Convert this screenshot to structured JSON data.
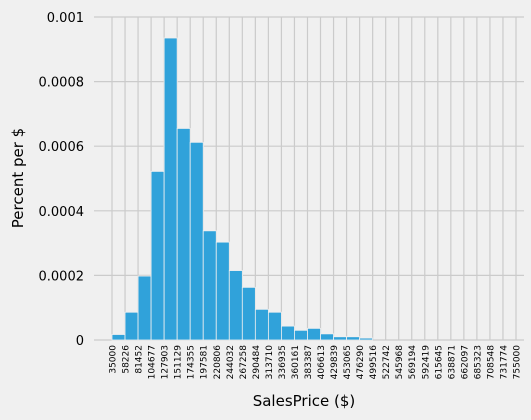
{
  "chart_data": {
    "type": "bar",
    "title": "",
    "xlabel": "SalesPrice ($)",
    "ylabel": "Percent per $",
    "ylim": [
      0,
      0.001
    ],
    "yticks": [
      "0",
      "0.0002",
      "0.0004",
      "0.0006",
      "0.0008",
      "0.001"
    ],
    "ytick_values": [
      0,
      0.0002,
      0.0004,
      0.0006,
      0.0008,
      0.001
    ],
    "bin_edges": [
      "35000",
      "58226",
      "81452",
      "104677",
      "127903",
      "151129",
      "174355",
      "197581",
      "220806",
      "244032",
      "267258",
      "290484",
      "313710",
      "336935",
      "360161",
      "383387",
      "406613",
      "429839",
      "453065",
      "476290",
      "499516",
      "522742",
      "545968",
      "569194",
      "592419",
      "615645",
      "638871",
      "662097",
      "685323",
      "708548",
      "731774",
      "755000"
    ],
    "bin_edge_values": [
      35000,
      58226,
      81452,
      104677,
      127903,
      151129,
      174355,
      197581,
      220806,
      244032,
      267258,
      290484,
      313710,
      336935,
      360161,
      383387,
      406613,
      429839,
      453065,
      476290,
      499516,
      522742,
      545968,
      569194,
      592419,
      615645,
      638871,
      662097,
      685323,
      708548,
      731774,
      755000
    ],
    "values": [
      1.7e-05,
      8.6e-05,
      0.000198,
      0.000522,
      0.000935,
      0.000655,
      0.000612,
      0.000338,
      0.000303,
      0.000215,
      0.000163,
      9.5e-05,
      8.6e-05,
      4.3e-05,
      3e-05,
      3.6e-05,
      1.9e-05,
      1e-05,
      1e-05,
      6e-06,
      0,
      0,
      0,
      0,
      0,
      0,
      0,
      0,
      0,
      0,
      0
    ],
    "grid": true,
    "colors": {
      "bar": "#30a2da",
      "background": "#f0f0f0",
      "grid": "#cbcbcb"
    }
  }
}
